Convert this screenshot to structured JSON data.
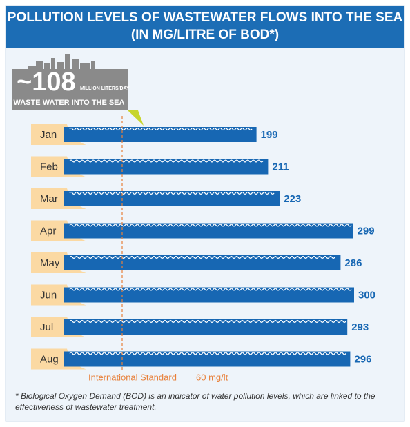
{
  "chart_data": {
    "type": "bar",
    "orientation": "horizontal",
    "title": "POLLUTION LEVELS OF WASTEWATER FLOWS INTO THE SEA",
    "subtitle": "(IN MG/LITRE OF BOD*)",
    "categories": [
      "Jan",
      "Feb",
      "Mar",
      "Apr",
      "May",
      "Jun",
      "Jul",
      "Aug"
    ],
    "values": [
      199,
      211,
      223,
      299,
      286,
      300,
      293,
      296
    ],
    "color": "#1767b3",
    "xlim": [
      0,
      350
    ],
    "reference_line": {
      "label": "International Standard",
      "value": 60,
      "value_label": "60 mg/lt",
      "color": "#e8803a"
    },
    "callout": {
      "value_label": "~108",
      "unit": "MILLION LITERS/DAY",
      "caption": "WASTE WATER INTO THE SEA"
    },
    "footnote": "* Biological Oxygen Demand (BOD) is an indicator of water pollution levels, which are linked to the effectiveness of wastewater treatment."
  }
}
